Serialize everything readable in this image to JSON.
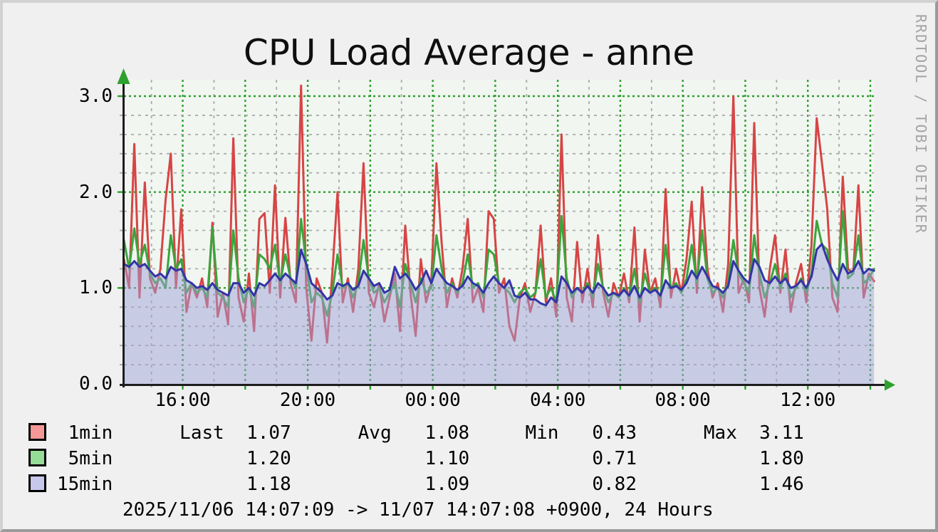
{
  "title": "CPU Load Average - anne",
  "watermark": "RRDTOOL / TOBI OETIKER",
  "footer": "2025/11/06 14:07:09 -> 11/07 14:07:08 +0900, 24 Hours",
  "colors": {
    "background": "#f0f0f0",
    "canvas": "#f1f6f1",
    "grid_major": "#2ea02e",
    "grid_minor": "#ababab",
    "axis": "#1d1d1d",
    "arrow": "#2ea02e",
    "line_1min": "#d64545",
    "line_5min": "#3ba43b",
    "line_15min": "#3434a6",
    "area_15min": "rgba(160,160,215,0.5)",
    "swatch_1min": "#f49898",
    "swatch_5min": "#96db96",
    "swatch_15min": "#c8c8ec"
  },
  "legend": {
    "rows": [
      {
        "label": "1min",
        "swatch": "#f49898",
        "text": " 1min      Last  1.07      Avg   1.08     Min   0.43      Max  3.11"
      },
      {
        "label": "5min",
        "swatch": "#96db96",
        "text": " 5min            1.20            1.10           0.71           1.80"
      },
      {
        "label": "15min",
        "swatch": "#c8c8ec",
        "text": "15min            1.18            1.09           0.82           1.46"
      }
    ]
  },
  "chart_data": {
    "type": "line",
    "title": "CPU Load Average - anne",
    "xlabel": "",
    "ylabel": "",
    "x_ticks": [
      "16:00",
      "20:00",
      "00:00",
      "04:00",
      "08:00",
      "12:00"
    ],
    "x_tick_hours": [
      16,
      20,
      24,
      28,
      32,
      36
    ],
    "y_ticks": [
      "3.0",
      "2.0",
      "1.0",
      "0.0"
    ],
    "y_tick_values": [
      3,
      2,
      1,
      0
    ],
    "ylim": [
      0,
      3.17
    ],
    "time_start": "2025/11/06 14:07:09",
    "time_end": "2025/11/07 14:07:08",
    "timezone": "+0900",
    "duration": "24 Hours",
    "step_minutes": 10,
    "grid": {
      "y_major": [
        1,
        2,
        3
      ],
      "y_minor_step": 0.2,
      "x_major_every_hours": 2,
      "x_minor_every_hours": 1,
      "legend_position": "bottom"
    },
    "series": [
      {
        "name": "1min",
        "color": "#d64545",
        "stats": {
          "last": 1.07,
          "avg": 1.08,
          "min": 0.43,
          "max": 3.11
        },
        "values": [
          1.3,
          1.0,
          2.5,
          0.9,
          2.1,
          1.1,
          0.95,
          1.2,
          1.92,
          2.4,
          1.0,
          1.82,
          0.75,
          1.05,
          0.9,
          1.1,
          0.8,
          1.68,
          0.7,
          0.95,
          0.62,
          2.56,
          0.9,
          0.65,
          1.15,
          0.55,
          1.72,
          1.78,
          0.95,
          2.07,
          0.9,
          1.73,
          1.05,
          0.85,
          3.11,
          1.0,
          0.45,
          1.1,
          0.95,
          0.43,
          1.15,
          2.0,
          0.85,
          1.1,
          0.75,
          1.2,
          2.3,
          0.95,
          0.8,
          1.05,
          0.65,
          0.9,
          1.15,
          0.55,
          1.65,
          0.95,
          0.5,
          1.3,
          0.85,
          1.05,
          2.3,
          1.47,
          0.8,
          1.1,
          0.9,
          1.2,
          1.72,
          0.85,
          1.0,
          0.75,
          1.8,
          1.72,
          0.95,
          1.1,
          0.6,
          0.45,
          0.9,
          1.05,
          0.75,
          0.95,
          1.65,
          0.85,
          1.1,
          0.7,
          2.6,
          0.9,
          0.65,
          1.48,
          0.85,
          1.2,
          0.8,
          1.55,
          0.95,
          0.7,
          1.05,
          0.9,
          1.15,
          0.85,
          1.63,
          0.65,
          1.4,
          0.95,
          1.1,
          0.8,
          2.03,
          0.9,
          1.2,
          0.95,
          1.3,
          1.9,
          0.95,
          2.05,
          1.2,
          0.9,
          1.05,
          0.75,
          1.25,
          3.0,
          0.95,
          1.1,
          0.85,
          2.72,
          1.0,
          0.7,
          1.2,
          1.55,
          0.95,
          1.4,
          0.75,
          1.05,
          1.25,
          0.85,
          1.45,
          2.77,
          2.3,
          1.83,
          0.9,
          0.75,
          2.16,
          1.2,
          1.15,
          2.07,
          0.9,
          1.15,
          1.07
        ]
      },
      {
        "name": "5min",
        "color": "#3ba43b",
        "stats": {
          "last": 1.2,
          "avg": 1.1,
          "min": 0.71,
          "max": 1.8
        },
        "values": [
          1.5,
          1.2,
          1.62,
          1.25,
          1.45,
          1.15,
          1.05,
          1.1,
          1.0,
          1.55,
          1.2,
          1.3,
          0.95,
          1.05,
          0.95,
          1.0,
          0.9,
          1.63,
          0.95,
          0.9,
          0.8,
          1.6,
          1.1,
          0.85,
          1.0,
          0.8,
          1.35,
          1.3,
          1.2,
          1.45,
          1.05,
          1.35,
          1.1,
          1.0,
          1.72,
          1.25,
          0.85,
          0.95,
          0.9,
          0.71,
          0.95,
          1.35,
          1.0,
          1.05,
          0.9,
          1.05,
          1.5,
          1.1,
          0.95,
          1.0,
          0.85,
          0.95,
          1.05,
          0.8,
          1.25,
          1.05,
          0.85,
          1.1,
          0.95,
          1.0,
          1.55,
          1.2,
          0.95,
          1.05,
          0.95,
          1.05,
          1.35,
          1.0,
          1.05,
          0.9,
          1.4,
          1.35,
          1.05,
          1.0,
          0.95,
          0.85,
          0.95,
          1.0,
          0.9,
          0.95,
          1.3,
          0.9,
          1.0,
          0.85,
          1.75,
          1.1,
          0.9,
          1.0,
          0.95,
          1.05,
          0.9,
          1.25,
          1.0,
          0.85,
          0.95,
          0.9,
          1.0,
          0.9,
          1.2,
          0.85,
          1.15,
          0.95,
          1.0,
          0.9,
          1.45,
          1.0,
          1.05,
          0.95,
          1.1,
          1.45,
          1.05,
          1.6,
          1.1,
          0.95,
          1.0,
          0.9,
          1.05,
          1.5,
          1.15,
          1.05,
          0.95,
          1.55,
          1.15,
          0.9,
          1.05,
          1.25,
          1.0,
          1.15,
          0.9,
          1.0,
          1.1,
          0.95,
          1.15,
          1.7,
          1.45,
          1.4,
          1.05,
          0.9,
          1.8,
          1.1,
          1.15,
          1.55,
          1.05,
          1.1,
          1.2
        ]
      },
      {
        "name": "15min",
        "color": "#3434a6",
        "fill": "rgba(160,160,215,0.5)",
        "stats": {
          "last": 1.18,
          "avg": 1.09,
          "min": 0.82,
          "max": 1.46
        },
        "values": [
          1.25,
          1.22,
          1.28,
          1.22,
          1.25,
          1.18,
          1.12,
          1.15,
          1.1,
          1.22,
          1.18,
          1.2,
          1.08,
          1.05,
          1.0,
          1.02,
          0.98,
          1.05,
          0.98,
          0.95,
          0.92,
          1.05,
          1.05,
          0.95,
          1.0,
          0.92,
          1.05,
          1.02,
          1.08,
          1.15,
          1.08,
          1.15,
          1.1,
          1.05,
          1.4,
          1.25,
          1.05,
          1.0,
          0.95,
          0.88,
          0.92,
          1.05,
          1.02,
          1.05,
          0.98,
          1.02,
          1.18,
          1.1,
          1.02,
          1.05,
          0.95,
          0.98,
          1.22,
          1.1,
          1.15,
          1.08,
          0.98,
          1.05,
          1.18,
          1.05,
          1.2,
          1.12,
          1.05,
          1.02,
          0.98,
          1.02,
          1.12,
          1.05,
          1.02,
          0.95,
          1.05,
          1.12,
          1.05,
          1.0,
          1.08,
          0.92,
          0.9,
          0.95,
          0.88,
          0.88,
          0.84,
          0.82,
          0.9,
          0.85,
          1.12,
          1.05,
          0.95,
          1.0,
          0.95,
          1.02,
          0.95,
          1.05,
          1.0,
          0.92,
          0.95,
          0.92,
          0.98,
          0.92,
          1.02,
          0.9,
          1.0,
          0.95,
          0.98,
          0.92,
          1.08,
          1.0,
          1.02,
          0.98,
          1.05,
          1.18,
          1.1,
          1.22,
          1.12,
          1.02,
          1.0,
          0.95,
          1.02,
          1.28,
          1.18,
          1.1,
          1.05,
          1.3,
          1.22,
          1.08,
          1.05,
          1.12,
          1.05,
          1.1,
          1.0,
          1.02,
          1.08,
          1.0,
          1.12,
          1.4,
          1.46,
          1.3,
          1.18,
          1.08,
          1.25,
          1.15,
          1.18,
          1.28,
          1.15,
          1.2,
          1.18
        ]
      }
    ]
  }
}
